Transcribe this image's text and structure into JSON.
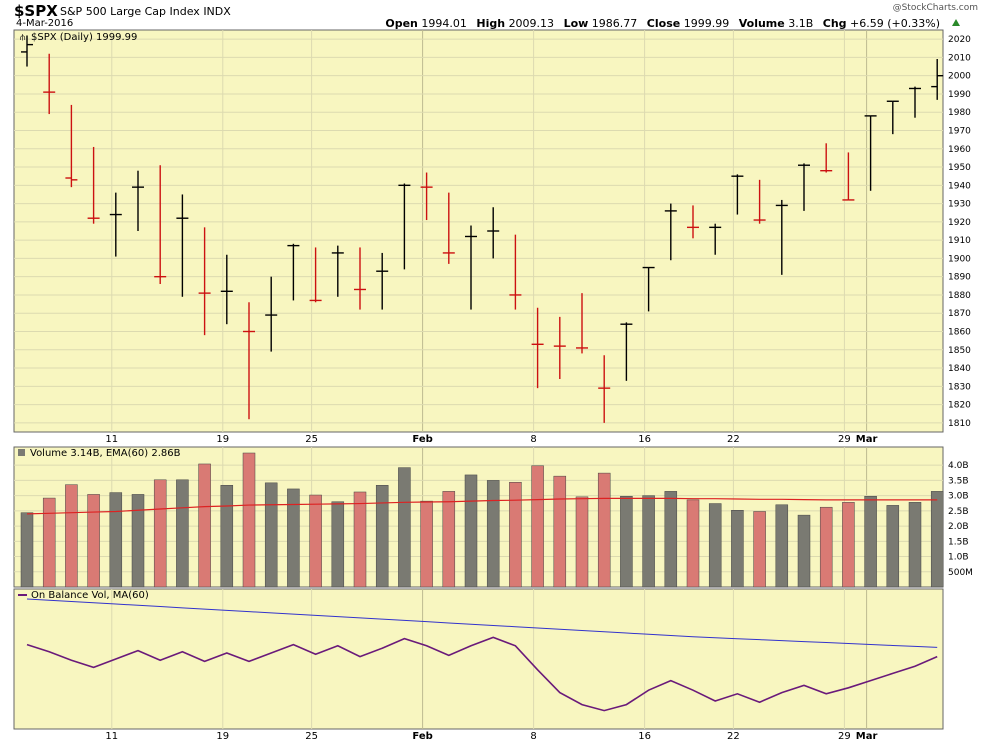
{
  "header": {
    "symbol": "$SPX",
    "name": "S&P 500 Large Cap Index",
    "exchange": "INDX",
    "date": "4-Mar-2016",
    "brand": "@StockCharts.com",
    "open_label": "Open",
    "open": "1994.01",
    "high_label": "High",
    "high": "2009.13",
    "low_label": "Low",
    "low": "1986.77",
    "close_label": "Close",
    "close": "1999.99",
    "volume_label": "Volume",
    "volume": "3.1B",
    "chg_label": "Chg",
    "chg": "+6.59 (+0.33%)"
  },
  "colors": {
    "panel_bg": "#f8f6c0",
    "up": "#000000",
    "down": "#cc1111",
    "vol_up": "#7a7a72",
    "vol_down": "#d97a74",
    "ema": "#dd2222",
    "obv": "#6a1a7a",
    "obv_ma": "#3333cc",
    "grid": "#dcdab0"
  },
  "chart_data": [
    {
      "type": "ohlc",
      "title": "$SPX (Daily) 1999.99",
      "ylim": [
        1805,
        2025
      ],
      "yticks": [
        1810,
        1820,
        1830,
        1840,
        1850,
        1860,
        1870,
        1880,
        1890,
        1900,
        1910,
        1920,
        1930,
        1940,
        1950,
        1960,
        1970,
        1980,
        1990,
        2000,
        2010,
        2020
      ],
      "xticks": [
        {
          "label": "11",
          "index": 4
        },
        {
          "label": "19",
          "index": 9
        },
        {
          "label": "25",
          "index": 13
        },
        {
          "label": "Feb",
          "index": 18
        },
        {
          "label": "8",
          "index": 23
        },
        {
          "label": "16",
          "index": 28
        },
        {
          "label": "22",
          "index": 32
        },
        {
          "label": "29",
          "index": 37
        },
        {
          "label": "Mar",
          "index": 38
        }
      ],
      "bars": [
        {
          "o": 2013,
          "h": 2022,
          "l": 2005,
          "c": 2017
        },
        {
          "o": 1991,
          "h": 2012,
          "l": 1979,
          "c": 1991
        },
        {
          "o": 1944,
          "h": 1984,
          "l": 1939,
          "c": 1943
        },
        {
          "o": 1922,
          "h": 1961,
          "l": 1919,
          "c": 1922
        },
        {
          "o": 1924,
          "h": 1936,
          "l": 1901,
          "c": 1924
        },
        {
          "o": 1939,
          "h": 1948,
          "l": 1915,
          "c": 1939
        },
        {
          "o": 1890,
          "h": 1951,
          "l": 1886,
          "c": 1890
        },
        {
          "o": 1922,
          "h": 1935,
          "l": 1879,
          "c": 1922
        },
        {
          "o": 1881,
          "h": 1917,
          "l": 1858,
          "c": 1881
        },
        {
          "o": 1882,
          "h": 1902,
          "l": 1864,
          "c": 1882
        },
        {
          "o": 1860,
          "h": 1876,
          "l": 1812,
          "c": 1860
        },
        {
          "o": 1869,
          "h": 1890,
          "l": 1849,
          "c": 1869
        },
        {
          "o": 1907,
          "h": 1908,
          "l": 1877,
          "c": 1907
        },
        {
          "o": 1877,
          "h": 1906,
          "l": 1876,
          "c": 1877
        },
        {
          "o": 1903,
          "h": 1907,
          "l": 1879,
          "c": 1903
        },
        {
          "o": 1883,
          "h": 1906,
          "l": 1872,
          "c": 1883
        },
        {
          "o": 1893,
          "h": 1903,
          "l": 1872,
          "c": 1893
        },
        {
          "o": 1940,
          "h": 1941,
          "l": 1894,
          "c": 1940
        },
        {
          "o": 1939,
          "h": 1947,
          "l": 1921,
          "c": 1939
        },
        {
          "o": 1903,
          "h": 1936,
          "l": 1897,
          "c": 1903
        },
        {
          "o": 1912,
          "h": 1918,
          "l": 1872,
          "c": 1912
        },
        {
          "o": 1915,
          "h": 1928,
          "l": 1900,
          "c": 1915
        },
        {
          "o": 1880,
          "h": 1913,
          "l": 1872,
          "c": 1880
        },
        {
          "o": 1853,
          "h": 1873,
          "l": 1829,
          "c": 1853
        },
        {
          "o": 1852,
          "h": 1868,
          "l": 1834,
          "c": 1852
        },
        {
          "o": 1851,
          "h": 1881,
          "l": 1848,
          "c": 1851
        },
        {
          "o": 1829,
          "h": 1847,
          "l": 1810,
          "c": 1829
        },
        {
          "o": 1864,
          "h": 1865,
          "l": 1833,
          "c": 1864
        },
        {
          "o": 1895,
          "h": 1895,
          "l": 1871,
          "c": 1895
        },
        {
          "o": 1926,
          "h": 1930,
          "l": 1899,
          "c": 1926
        },
        {
          "o": 1917,
          "h": 1929,
          "l": 1911,
          "c": 1917
        },
        {
          "o": 1917,
          "h": 1919,
          "l": 1902,
          "c": 1917
        },
        {
          "o": 1945,
          "h": 1946,
          "l": 1924,
          "c": 1945
        },
        {
          "o": 1921,
          "h": 1943,
          "l": 1919,
          "c": 1921
        },
        {
          "o": 1929,
          "h": 1932,
          "l": 1891,
          "c": 1929
        },
        {
          "o": 1951,
          "h": 1952,
          "l": 1926,
          "c": 1951
        },
        {
          "o": 1948,
          "h": 1963,
          "l": 1947,
          "c": 1948
        },
        {
          "o": 1932,
          "h": 1958,
          "l": 1932,
          "c": 1932
        },
        {
          "o": 1978,
          "h": 1978,
          "l": 1937,
          "c": 1978
        },
        {
          "o": 1986,
          "h": 1986,
          "l": 1968,
          "c": 1986
        },
        {
          "o": 1993,
          "h": 1994,
          "l": 1977,
          "c": 1993
        },
        {
          "o": 1994.01,
          "h": 2009.13,
          "l": 1986.77,
          "c": 1999.99
        }
      ]
    },
    {
      "type": "bar",
      "title": "Volume 3.14B, EMA(60) 2.86B",
      "unit": "B",
      "ylim": [
        0,
        4.4
      ],
      "yticks": [
        {
          "v": 0.5,
          "label": "500M"
        },
        {
          "v": 1.0,
          "label": "1.0B"
        },
        {
          "v": 1.5,
          "label": "1.5B"
        },
        {
          "v": 2.0,
          "label": "2.0B"
        },
        {
          "v": 2.5,
          "label": "2.5B"
        },
        {
          "v": 3.0,
          "label": "3.0B"
        },
        {
          "v": 3.5,
          "label": "3.5B"
        },
        {
          "v": 4.0,
          "label": "4.0B"
        }
      ],
      "values": [
        2.44,
        2.92,
        3.36,
        3.04,
        3.1,
        3.04,
        3.52,
        3.52,
        4.04,
        3.34,
        4.4,
        3.42,
        3.22,
        3.02,
        2.8,
        3.12,
        3.34,
        3.92,
        2.82,
        3.14,
        3.68,
        3.5,
        3.44,
        3.98,
        3.64,
        2.96,
        3.74,
        2.98,
        3.0,
        3.14,
        2.86,
        2.74,
        2.52,
        2.48,
        2.7,
        2.36,
        2.62,
        2.78,
        2.98,
        2.68,
        2.78,
        3.14
      ],
      "ema": [
        2.4,
        2.42,
        2.44,
        2.46,
        2.48,
        2.52,
        2.56,
        2.6,
        2.64,
        2.66,
        2.69,
        2.7,
        2.71,
        2.72,
        2.73,
        2.74,
        2.76,
        2.78,
        2.79,
        2.8,
        2.82,
        2.84,
        2.85,
        2.87,
        2.89,
        2.9,
        2.91,
        2.91,
        2.91,
        2.91,
        2.9,
        2.9,
        2.89,
        2.88,
        2.88,
        2.87,
        2.86,
        2.86,
        2.86,
        2.86,
        2.86,
        2.86
      ]
    },
    {
      "type": "line",
      "title": "On Balance Vol, MA(60)",
      "ylim": [
        0,
        100
      ],
      "obv": [
        62,
        56,
        49,
        43,
        50,
        57,
        49,
        56,
        48,
        55,
        48,
        55,
        62,
        54,
        61,
        52,
        59,
        67,
        61,
        53,
        61,
        68,
        61,
        41,
        22,
        12,
        7,
        12,
        24,
        32,
        24,
        15,
        21,
        14,
        22,
        28,
        21,
        26,
        32,
        38,
        44,
        52
      ],
      "obv_ma": [
        null,
        null,
        null,
        null,
        null,
        null,
        null,
        null,
        null,
        null,
        null,
        null,
        null,
        null,
        null,
        null,
        null,
        null,
        null,
        null,
        null,
        null,
        null,
        null,
        null,
        null,
        null,
        null,
        null,
        null,
        null,
        null,
        null,
        null,
        null,
        null,
        null,
        null,
        null,
        null,
        null,
        null
      ]
    }
  ]
}
